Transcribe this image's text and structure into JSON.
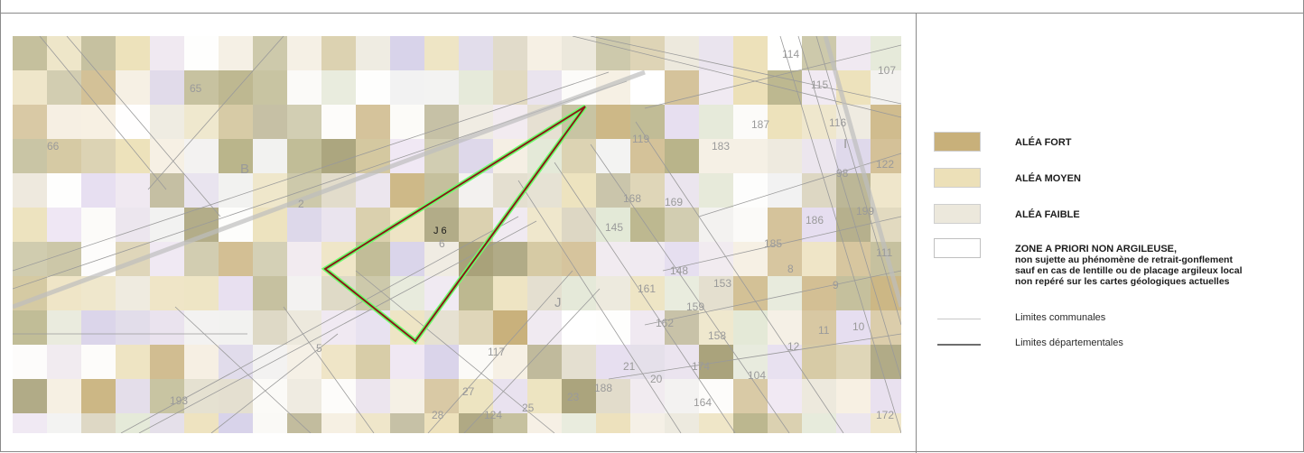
{
  "map": {
    "parcel_labels": [
      {
        "id": "65",
        "text": "65"
      },
      {
        "id": "66",
        "text": "66"
      },
      {
        "id": "B",
        "text": "B"
      },
      {
        "id": "2",
        "text": "2"
      },
      {
        "id": "6",
        "text": "6"
      },
      {
        "id": "5",
        "text": "5"
      },
      {
        "id": "193",
        "text": "193"
      },
      {
        "id": "117",
        "text": "117"
      },
      {
        "id": "27",
        "text": "27"
      },
      {
        "id": "28",
        "text": "28"
      },
      {
        "id": "124",
        "text": "124"
      },
      {
        "id": "25",
        "text": "25"
      },
      {
        "id": "23",
        "text": "23"
      },
      {
        "id": "188",
        "text": "188"
      },
      {
        "id": "21",
        "text": "21"
      },
      {
        "id": "20",
        "text": "20"
      },
      {
        "id": "164",
        "text": "164"
      },
      {
        "id": "172",
        "text": "172"
      },
      {
        "id": "J",
        "text": "J"
      },
      {
        "id": "119",
        "text": "119"
      },
      {
        "id": "183",
        "text": "183"
      },
      {
        "id": "168",
        "text": "168"
      },
      {
        "id": "169",
        "text": "169"
      },
      {
        "id": "145",
        "text": "145"
      },
      {
        "id": "148",
        "text": "148"
      },
      {
        "id": "161",
        "text": "161"
      },
      {
        "id": "153",
        "text": "153"
      },
      {
        "id": "162",
        "text": "162"
      },
      {
        "id": "159",
        "text": "159"
      },
      {
        "id": "158",
        "text": "158"
      },
      {
        "id": "174",
        "text": "174"
      },
      {
        "id": "104",
        "text": "104"
      },
      {
        "id": "12",
        "text": "12"
      },
      {
        "id": "11",
        "text": "11"
      },
      {
        "id": "10",
        "text": "10"
      },
      {
        "id": "9",
        "text": "9"
      },
      {
        "id": "8",
        "text": "8"
      },
      {
        "id": "185",
        "text": "185"
      },
      {
        "id": "186",
        "text": "186"
      },
      {
        "id": "199",
        "text": "199"
      },
      {
        "id": "111",
        "text": "111"
      },
      {
        "id": "98",
        "text": "98"
      },
      {
        "id": "122",
        "text": "122"
      },
      {
        "id": "116",
        "text": "116"
      },
      {
        "id": "115",
        "text": "115"
      },
      {
        "id": "114",
        "text": "114"
      },
      {
        "id": "107",
        "text": "107"
      },
      {
        "id": "187",
        "text": "187"
      },
      {
        "id": "I",
        "text": "I"
      }
    ],
    "parcel_id_label": "J 6"
  },
  "legend": {
    "fort": {
      "label": "ALÉA FORT",
      "color": "#c8b07a"
    },
    "moyen": {
      "label": "ALÉA MOYEN",
      "color": "#ece0b8"
    },
    "faible": {
      "label": "ALÉA FAIBLE",
      "color": "#ece8dc"
    },
    "non_argileuse": {
      "label": "ZONE A PRIORI NON ARGILEUSE,",
      "desc1": "non sujette au phénomène de retrait-gonflement",
      "desc2": "sauf en cas de lentille ou de placage argileux local",
      "desc3": "non repéré sur les cartes géologiques actuelles",
      "color": "#ffffff"
    },
    "communales": {
      "label": "Limites communales",
      "color": "#c8c8c8"
    },
    "departementales": {
      "label": "Limites départementales",
      "color": "#6e6e6e"
    }
  }
}
